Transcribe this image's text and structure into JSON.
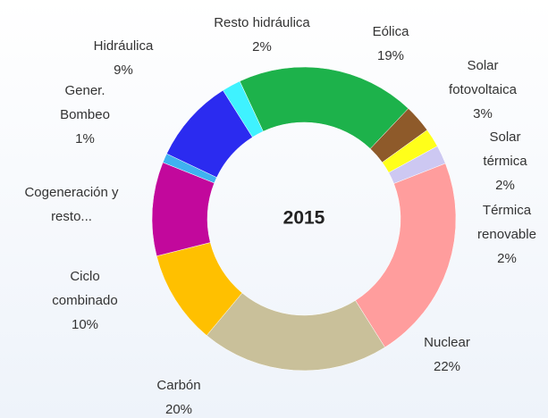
{
  "chart_data": {
    "type": "pie",
    "title": "2015",
    "categories": [
      "Eólica",
      "Solar fotovoltaica",
      "Solar térmica",
      "Térmica renovable",
      "Nuclear",
      "Carbón",
      "Ciclo combinado",
      "Cogeneración y resto...",
      "Gener. Bombeo",
      "Hidráulica",
      "Resto hidráulica"
    ],
    "values": [
      19,
      3,
      2,
      2,
      22,
      20,
      10,
      10,
      1,
      9,
      2
    ],
    "value_labels": [
      "19%",
      "3%",
      "2%",
      "2%",
      "22%",
      "20%",
      "10%",
      null,
      "1%",
      "9%",
      "2%"
    ],
    "colors": [
      "#1db24b",
      "#8e5a2a",
      "#ffff1a",
      "#cdc8f2",
      "#ff9d9d",
      "#c9c09a",
      "#ffc000",
      "#c2089c",
      "#3fb2f0",
      "#2b2bf0",
      "#3ff2ff"
    ],
    "donut": true
  }
}
